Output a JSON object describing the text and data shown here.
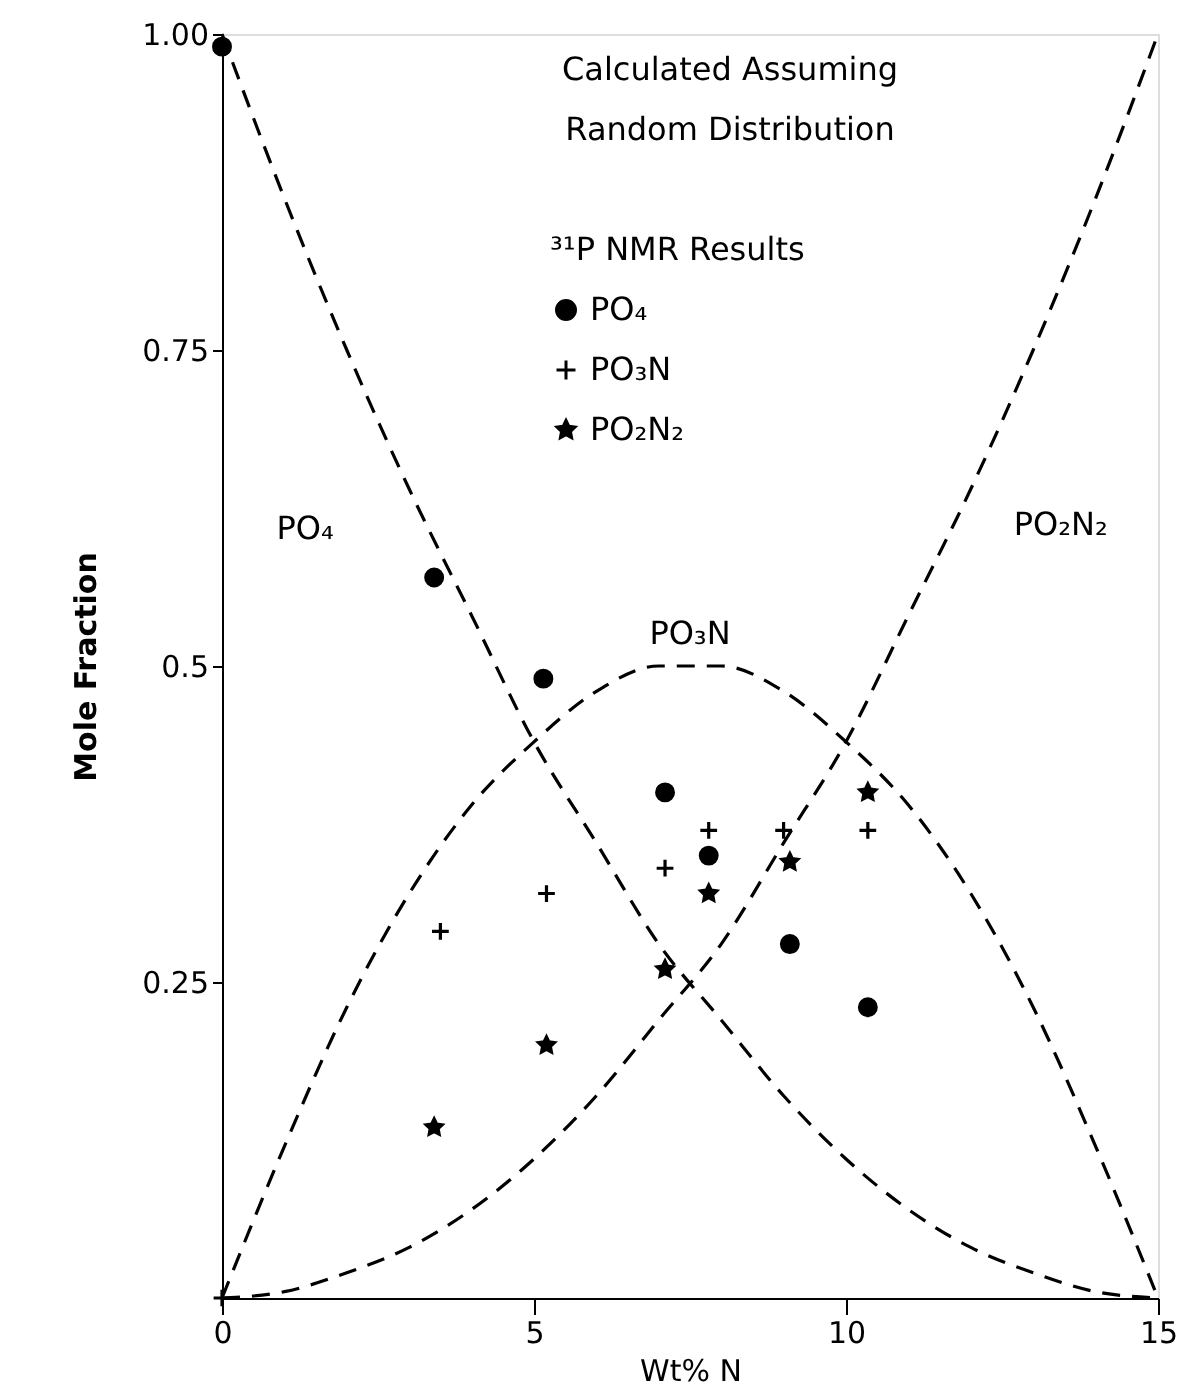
{
  "chart_data": {
    "type": "scatter",
    "xlabel": "Wt% N",
    "ylabel": "Mole Fraction",
    "legend_title": "³¹P NMR Results",
    "legend": "top",
    "grid": false,
    "xlim": [
      0,
      15
    ],
    "xticks": [
      0,
      5,
      10,
      15
    ],
    "ylim": [
      0,
      1.0
    ],
    "yticks": [
      {
        "value": 0.25,
        "label": "0.25"
      },
      {
        "value": 0.5,
        "label": "0.5"
      },
      {
        "value": 0.75,
        "label": "0.75"
      },
      {
        "value": 1.0,
        "label": "1.00"
      }
    ],
    "series": [
      {
        "type": "line",
        "name": "PO₄",
        "color": "#000000",
        "line_style": "dashed",
        "marker": "none",
        "x": [
          0,
          1,
          2,
          3,
          4,
          5,
          6,
          7,
          8,
          9,
          10,
          11,
          12,
          13,
          14,
          15
        ],
        "values": [
          1.0,
          0.87,
          0.75,
          0.64,
          0.54,
          0.44,
          0.36,
          0.28,
          0.22,
          0.16,
          0.11,
          0.07,
          0.04,
          0.02,
          0.005,
          0
        ]
      },
      {
        "type": "line",
        "name": "PO₃N",
        "color": "#000000",
        "line_style": "dashed",
        "marker": "none",
        "x": [
          0,
          1,
          2,
          3,
          4,
          5,
          6,
          7,
          7.5,
          8,
          9,
          10,
          11,
          12,
          13,
          14,
          15
        ],
        "values": [
          0,
          0.12,
          0.23,
          0.32,
          0.39,
          0.44,
          0.48,
          0.5,
          0.5,
          0.5,
          0.48,
          0.44,
          0.39,
          0.32,
          0.23,
          0.12,
          0
        ]
      },
      {
        "type": "line",
        "name": "PO₂N₂",
        "color": "#000000",
        "line_style": "dashed",
        "marker": "none",
        "x": [
          0,
          1,
          2,
          3,
          4,
          5,
          6,
          7,
          8,
          9,
          10,
          11,
          12,
          13,
          14,
          15
        ],
        "values": [
          0,
          0.005,
          0.02,
          0.04,
          0.07,
          0.11,
          0.16,
          0.22,
          0.28,
          0.36,
          0.44,
          0.54,
          0.64,
          0.75,
          0.87,
          1.0
        ]
      },
      {
        "type": "scatter",
        "name": "PO₄",
        "color": "#000000",
        "marker": "circle",
        "x": [
          0,
          3.4,
          5.15,
          7.1,
          7.8,
          9.1,
          10.35
        ],
        "values": [
          0.99,
          0.57,
          0.49,
          0.4,
          0.35,
          0.28,
          0.23
        ]
      },
      {
        "type": "scatter",
        "name": "PO₃N",
        "color": "#000000",
        "marker": "cross",
        "x": [
          0,
          3.5,
          5.2,
          7.1,
          7.8,
          9.0,
          10.35
        ],
        "values": [
          0.0,
          0.29,
          0.32,
          0.34,
          0.37,
          0.37,
          0.37
        ]
      },
      {
        "type": "scatter",
        "name": "PO₂N₂",
        "color": "#000000",
        "marker": "star",
        "x": [
          3.4,
          5.2,
          7.1,
          7.8,
          9.1,
          10.35
        ],
        "values": [
          0.135,
          0.2,
          0.26,
          0.32,
          0.345,
          0.4
        ]
      }
    ],
    "annotations": [
      "Calculated Assuming Random Distribution"
    ]
  }
}
